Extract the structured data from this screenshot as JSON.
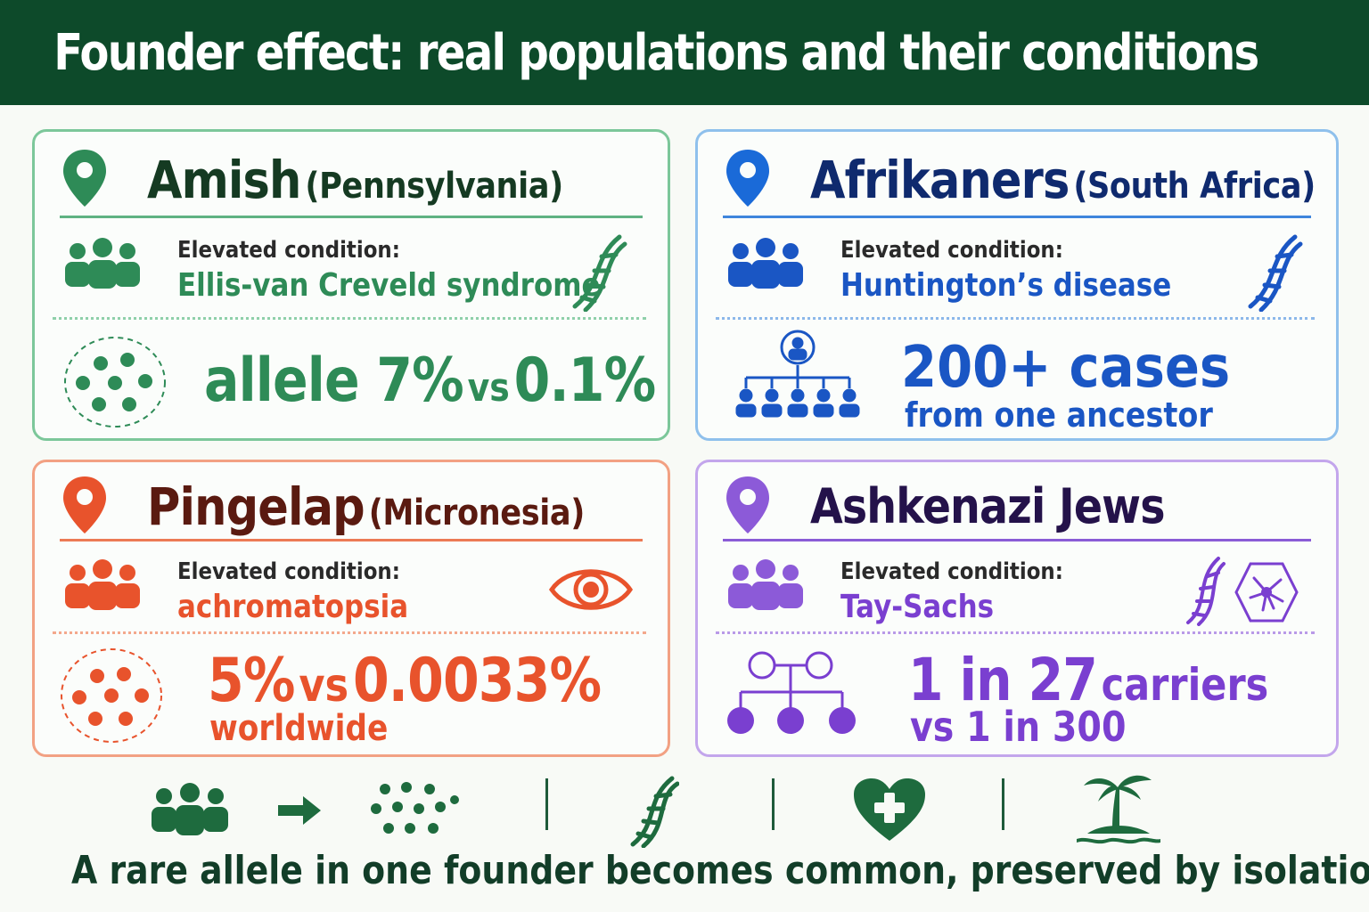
{
  "title": "Founder effect: real populations and their conditions",
  "colors": {
    "header_bg": "#0d4a2a",
    "amish": "#2e8b57",
    "afrikaners": "#1a56c4",
    "pingelap": "#e8532c",
    "ashkenazi": "#7a3fd0"
  },
  "cards": {
    "amish": {
      "name": "Amish",
      "region": "(Pennsylvania)",
      "elevated_label": "Elevated condition:",
      "condition": "Ellis-van Creveld syndrome",
      "stat_main": "allele 7%",
      "stat_vs": "vs",
      "stat_compare": "0.1%",
      "icons": [
        "location-pin-icon",
        "people-icon",
        "dna-icon",
        "allele-dots-icon"
      ]
    },
    "afrikaners": {
      "name": "Afrikaners",
      "region": "(South Africa)",
      "elevated_label": "Elevated condition:",
      "condition": "Huntington’s disease",
      "stat_main": "200+ cases",
      "stat_sub": "from one ancestor",
      "icons": [
        "location-pin-icon",
        "people-icon",
        "dna-icon",
        "family-tree-icon"
      ]
    },
    "pingelap": {
      "name": "Pingelap",
      "region": "(Micronesia)",
      "elevated_label": "Elevated condition:",
      "condition": "achromatopsia",
      "stat_main": "5%",
      "stat_vs": "vs",
      "stat_compare": "0.0033%",
      "stat_sub": "worldwide",
      "icons": [
        "location-pin-icon",
        "people-icon",
        "eye-icon",
        "allele-dots-icon"
      ]
    },
    "ashkenazi": {
      "name": "Ashkenazi Jews",
      "elevated_label": "Elevated condition:",
      "condition": "Tay-Sachs",
      "stat_main": "1 in 27",
      "stat_main_suffix": "carriers",
      "stat_sub": "vs 1 in 300",
      "icons": [
        "location-pin-icon",
        "people-icon",
        "dna-icon",
        "neuron-icon",
        "pedigree-icon"
      ]
    }
  },
  "footer": {
    "caption": "A rare allele in one founder becomes common, preserved by isolation",
    "icons": [
      "people-icon",
      "arrow-right-icon",
      "allele-dots-icon",
      "dna-icon",
      "heart-plus-icon",
      "island-palm-icon"
    ]
  }
}
